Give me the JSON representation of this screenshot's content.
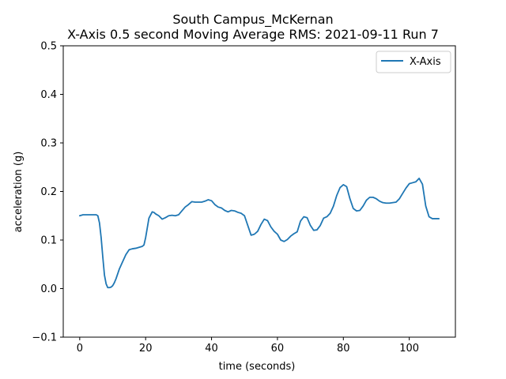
{
  "chart_data": {
    "type": "line",
    "title": "South Campus_McKernan",
    "subtitle": "X-Axis 0.5 second Moving Average RMS: 2021-09-11 Run 7",
    "xlabel": "time (seconds)",
    "ylabel": "acceleration (g)",
    "xlim": [
      -5,
      114
    ],
    "ylim": [
      -0.1,
      0.5
    ],
    "xticks": [
      0,
      20,
      40,
      60,
      80,
      100
    ],
    "xtick_labels": [
      "0",
      "20",
      "40",
      "60",
      "80",
      "100"
    ],
    "yticks": [
      -0.1,
      0.0,
      0.1,
      0.2,
      0.3,
      0.4,
      0.5
    ],
    "ytick_labels": [
      "−0.1",
      "0.0",
      "0.1",
      "0.2",
      "0.3",
      "0.4",
      "0.5"
    ],
    "grid": false,
    "legend_position": "top-right",
    "series": [
      {
        "name": "X-Axis",
        "color": "#1f77b4",
        "x": [
          0,
          1,
          2,
          3,
          4,
          5,
          5.5,
          6,
          6.5,
          7,
          7.5,
          8,
          8.5,
          9,
          9.5,
          10,
          10.5,
          11,
          12,
          13,
          14,
          15,
          16,
          17,
          18,
          19,
          19.5,
          20,
          20.5,
          21,
          22,
          22.5,
          23,
          24,
          25,
          26,
          27,
          28,
          29,
          30,
          31,
          32,
          33,
          34,
          35,
          36,
          37,
          38,
          39,
          40,
          41,
          42,
          43,
          44,
          45,
          46,
          47,
          48,
          49,
          50,
          51,
          52,
          53,
          54,
          55,
          56,
          57,
          58,
          59,
          60,
          61,
          62,
          63,
          64,
          65,
          66,
          67,
          68,
          69,
          70,
          71,
          72,
          73,
          74,
          75,
          76,
          77,
          78,
          79,
          80,
          81,
          82,
          83,
          84,
          85,
          86,
          87,
          88,
          89,
          90,
          91,
          92,
          93,
          94,
          95,
          96,
          97,
          98,
          99,
          100,
          101,
          102,
          103,
          104,
          105,
          106,
          107,
          108,
          109
        ],
        "y": [
          0.15,
          0.152,
          0.152,
          0.152,
          0.152,
          0.152,
          0.15,
          0.135,
          0.105,
          0.065,
          0.028,
          0.01,
          0.002,
          0.002,
          0.003,
          0.006,
          0.012,
          0.02,
          0.04,
          0.055,
          0.07,
          0.08,
          0.082,
          0.083,
          0.085,
          0.087,
          0.09,
          0.105,
          0.125,
          0.145,
          0.158,
          0.157,
          0.154,
          0.15,
          0.143,
          0.146,
          0.15,
          0.151,
          0.15,
          0.152,
          0.16,
          0.168,
          0.173,
          0.179,
          0.178,
          0.178,
          0.178,
          0.18,
          0.183,
          0.181,
          0.173,
          0.168,
          0.166,
          0.161,
          0.158,
          0.161,
          0.16,
          0.157,
          0.155,
          0.15,
          0.13,
          0.11,
          0.112,
          0.118,
          0.132,
          0.143,
          0.14,
          0.127,
          0.118,
          0.112,
          0.1,
          0.097,
          0.101,
          0.108,
          0.113,
          0.117,
          0.139,
          0.148,
          0.146,
          0.13,
          0.12,
          0.121,
          0.13,
          0.145,
          0.148,
          0.155,
          0.17,
          0.192,
          0.208,
          0.214,
          0.21,
          0.185,
          0.165,
          0.16,
          0.161,
          0.17,
          0.182,
          0.188,
          0.188,
          0.185,
          0.18,
          0.177,
          0.176,
          0.176,
          0.177,
          0.178,
          0.185,
          0.196,
          0.207,
          0.216,
          0.218,
          0.22,
          0.227,
          0.215,
          0.17,
          0.148,
          0.144,
          0.144,
          0.144
        ]
      }
    ]
  }
}
